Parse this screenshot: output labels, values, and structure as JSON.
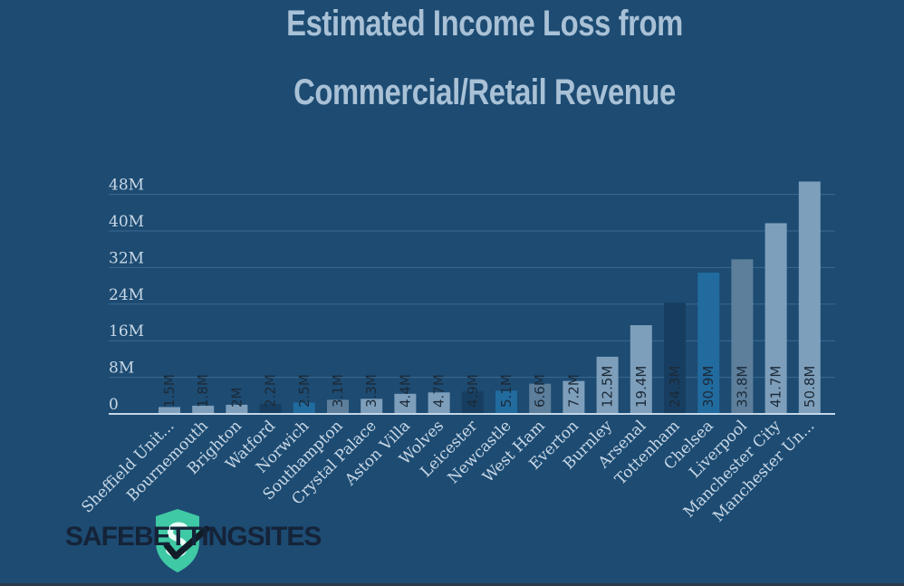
{
  "chart_data": {
    "type": "bar",
    "title_lines": [
      "Estimated Income Loss from",
      "Commercial/Retail Revenue"
    ],
    "categories": [
      "Sheffield Unit...",
      "Bournemouth",
      "Brighton",
      "Watford",
      "Norwich",
      "Southampton",
      "Crystal Palace",
      "Aston Villa",
      "Wolves",
      "Leicester",
      "Newcastle",
      "West Ham",
      "Everton",
      "Burnley",
      "Arsenal",
      "Tottenham",
      "Chelsea",
      "Liverpool",
      "Manchester City",
      "Manchester Un..."
    ],
    "values": [
      1.5,
      1.8,
      2,
      2.2,
      2.5,
      3.1,
      3.3,
      4.4,
      4.7,
      4.9,
      5.1,
      6.6,
      7.2,
      12.5,
      19.4,
      24.3,
      30.9,
      33.8,
      41.7,
      50.8
    ],
    "value_labels": [
      "1.5M",
      "1.8M",
      "2M",
      "2.2M",
      "2.5M",
      "3.1M",
      "3.3M",
      "4.4M",
      "4.7M",
      "4.9M",
      "5.1M",
      "6.6M",
      "7.2M",
      "12.5M",
      "19.4M",
      "24.3M",
      "30.9M",
      "33.8M",
      "41.7M",
      "50.8M"
    ],
    "bar_colors": [
      "#7e9fbb",
      "#7e9fbb",
      "#7e9fbb",
      "#173e60",
      "#216b9f",
      "#5d7f9c",
      "#7e9fbb",
      "#7e9fbb",
      "#7e9fbb",
      "#173e60",
      "#216b9f",
      "#5d7f9c",
      "#7e9fbb",
      "#7e9fbb",
      "#7e9fbb",
      "#173e60",
      "#216b9f",
      "#5d7f9c",
      "#7e9fbb",
      "#7e9fbb"
    ],
    "y_ticks": [
      0,
      8,
      16,
      24,
      32,
      40,
      48
    ],
    "y_tick_labels": [
      "0",
      "8M",
      "16M",
      "24M",
      "32M",
      "40M",
      "48M"
    ],
    "ylim": [
      0,
      52
    ],
    "grid": true,
    "legend": false
  },
  "brand": {
    "name": "SAFEBETTINGSITES"
  },
  "colors": {
    "background": "#1d4b72",
    "title": "#a9c1d6",
    "axis_text": "#c9d8e6",
    "gridline": "#3b6a91",
    "label_on_bar": "#1c2a38",
    "logo_green": "#3fc9a4",
    "brand_text": "#152338"
  }
}
